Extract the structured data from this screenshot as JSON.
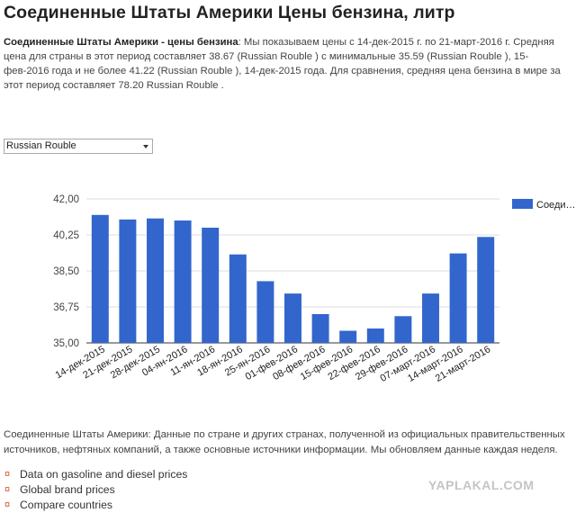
{
  "page": {
    "title": "Соединенные Штаты Америки Цены бензина, литр",
    "intro_bold": "Соединенные Штаты Америки - цены бензина",
    "intro_text": ": Мы показываем цены с 14-дек-2015 г. по 21-март-2016 г. Средняя цена для страны в этот период составляет 38.67 (Russian Rouble ) с минимальные 35.59 (Russian Rouble ), 15-фев-2016 года и не более 41.22 (Russian Rouble ), 14-дек-2015 года. Для сравнения, средняя цена бензина в мире за этот период составляет 78.20 Russian Rouble ."
  },
  "currency_select": {
    "value": "Russian Rouble"
  },
  "chart_data": {
    "type": "bar",
    "categories": [
      "14-дек-2015",
      "21-дек-2015",
      "28-дек-2015",
      "04-ян-2016",
      "11-ян-2016",
      "18-ян-2016",
      "25-ян-2016",
      "01-фев-2016",
      "08-фев-2016",
      "15-фев-2016",
      "22-фев-2016",
      "29-фев-2016",
      "07-март-2016",
      "14-март-2016",
      "21-март-2016"
    ],
    "series": [
      {
        "name": "Соеди…",
        "values": [
          41.22,
          41.0,
          41.05,
          40.95,
          40.6,
          39.3,
          38.0,
          37.4,
          36.4,
          35.59,
          35.7,
          36.3,
          37.4,
          39.35,
          40.15
        ]
      }
    ],
    "yticks": [
      "42,00",
      "40,25",
      "38,50",
      "36,75",
      "35,00"
    ],
    "ylim": [
      35,
      42
    ],
    "grid": true,
    "legend": "right",
    "color": "#3366cc"
  },
  "footer": {
    "text": "Соединенные Штаты Америки: Данные по стране и других странах, полученной из официальных правительственных источников, нефтяных компаний, а также основные источники информации. Мы обновляем данные каждая неделя.",
    "links": [
      "Data on gasoline and diesel prices",
      "Global brand prices",
      "Compare countries"
    ]
  },
  "watermark": "YAPLAKAL.COM",
  "colors": {
    "bar": "#3366cc",
    "bullet": "#e05030",
    "grid": "#dddddd"
  }
}
